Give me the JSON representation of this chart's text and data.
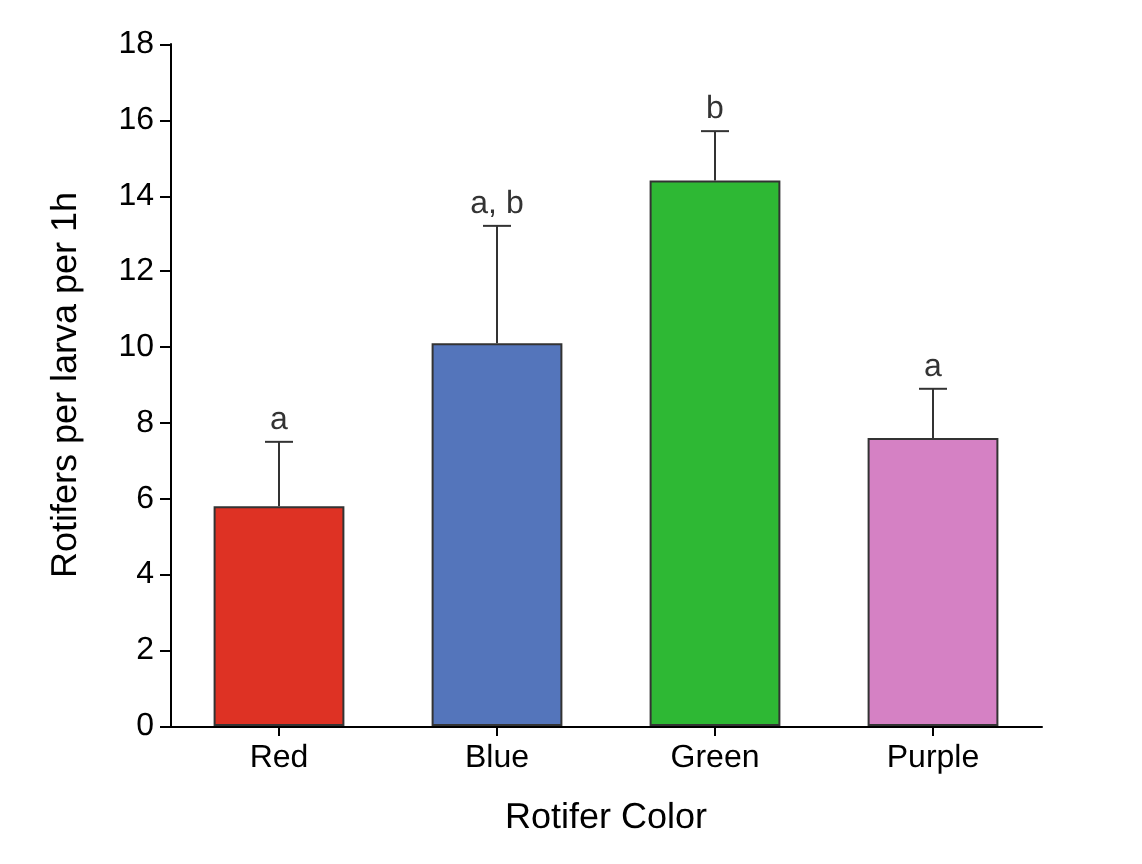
{
  "chart_data": {
    "type": "bar",
    "xlabel": "Rotifer Color",
    "ylabel": "Rotifers per larva per 1h",
    "categories": [
      "Red",
      "Blue",
      "Green",
      "Purple"
    ],
    "values": [
      5.8,
      10.1,
      14.4,
      7.6
    ],
    "colors": [
      "#de3224",
      "#5475bb",
      "#2eb834",
      "#d581c4"
    ],
    "errors": [
      [
        5.8,
        7.5
      ],
      [
        10.1,
        13.2
      ],
      [
        14.4,
        15.7
      ],
      [
        7.6,
        8.9
      ]
    ],
    "ylim": [
      0,
      18
    ],
    "yticks": [
      0,
      2,
      4,
      6,
      8,
      10,
      12,
      14,
      16,
      18
    ],
    "grid": false,
    "annotations": [
      {
        "text": "a",
        "x": "Red",
        "y": 7.5
      },
      {
        "text": "a, b",
        "x": "Blue",
        "y": 13.2
      },
      {
        "text": "b",
        "x": "Green",
        "y": 15.7
      },
      {
        "text": "a",
        "x": "Purple",
        "y": 8.9
      }
    ]
  }
}
